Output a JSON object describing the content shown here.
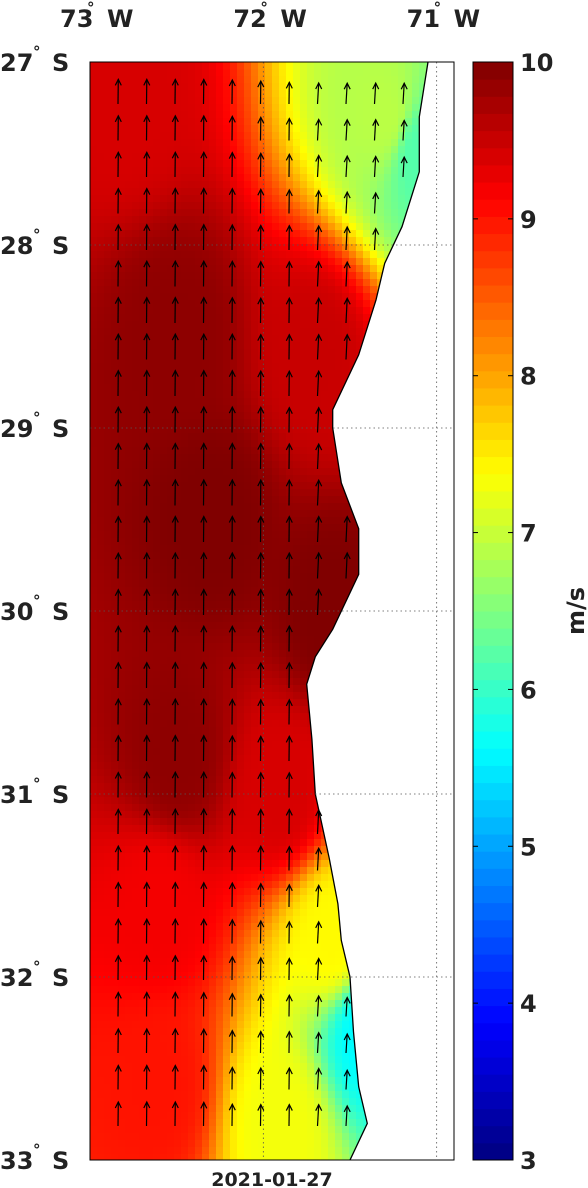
{
  "title": "",
  "date_label": "2021-01-27",
  "colorbar": {
    "unit": "m/s",
    "min": 3,
    "max": 10,
    "tick_labels": [
      "3",
      "4",
      "5",
      "6",
      "7",
      "8",
      "9",
      "10"
    ],
    "colormap": "jet"
  },
  "axes": {
    "lon_ticks": [
      {
        "deg": "73",
        "dir": "W",
        "value": -73
      },
      {
        "deg": "72",
        "dir": "W",
        "value": -72
      },
      {
        "deg": "71",
        "dir": "W",
        "value": -71
      }
    ],
    "lat_ticks": [
      {
        "deg": "27",
        "dir": "S",
        "value": -27
      },
      {
        "deg": "28",
        "dir": "S",
        "value": -28
      },
      {
        "deg": "29",
        "dir": "S",
        "value": -29
      },
      {
        "deg": "30",
        "dir": "S",
        "value": -30
      },
      {
        "deg": "31",
        "dir": "S",
        "value": -31
      },
      {
        "deg": "32",
        "dir": "S",
        "value": -32
      },
      {
        "deg": "33",
        "dir": "S",
        "value": -33
      }
    ],
    "lon_range": [
      -73.0,
      -70.9
    ],
    "lat_range": [
      -33.0,
      -27.0
    ],
    "grid": "dotted"
  },
  "colors": {
    "land": "#ffffff",
    "coastline": "#000000",
    "arrows": "#000000",
    "labels": "#222222"
  },
  "chart_data": {
    "type": "heatmap",
    "variable": "wind speed with direction vectors",
    "unit": "m/s",
    "wind_direction": "from south (northward arrows)",
    "speed_samples": [
      {
        "lat": -27.2,
        "lon": -72.8,
        "speed": 9.4
      },
      {
        "lat": -27.3,
        "lon": -71.3,
        "speed": 6.9
      },
      {
        "lat": -27.5,
        "lon": -71.1,
        "speed": 6.2
      },
      {
        "lat": -28.5,
        "lon": -72.5,
        "speed": 9.9
      },
      {
        "lat": -28.6,
        "lon": -71.7,
        "speed": 9.5
      },
      {
        "lat": -29.5,
        "lon": -72.3,
        "speed": 10.0
      },
      {
        "lat": -30.0,
        "lon": -71.6,
        "speed": 10.0
      },
      {
        "lat": -30.8,
        "lon": -72.5,
        "speed": 9.9
      },
      {
        "lat": -31.0,
        "lon": -71.9,
        "speed": 9.4
      },
      {
        "lat": -31.6,
        "lon": -72.6,
        "speed": 9.2
      },
      {
        "lat": -31.8,
        "lon": -71.6,
        "speed": 7.4
      },
      {
        "lat": -32.3,
        "lon": -71.4,
        "speed": 5.6
      },
      {
        "lat": -32.6,
        "lon": -72.6,
        "speed": 9.0
      },
      {
        "lat": -32.8,
        "lon": -71.9,
        "speed": 7.3
      }
    ],
    "coastline": [
      [
        -71.05,
        -27.0
      ],
      [
        -71.1,
        -27.3
      ],
      [
        -71.1,
        -27.6
      ],
      [
        -71.2,
        -27.9
      ],
      [
        -71.3,
        -28.1
      ],
      [
        -71.35,
        -28.3
      ],
      [
        -71.45,
        -28.6
      ],
      [
        -71.6,
        -28.9
      ],
      [
        -71.6,
        -29.0
      ],
      [
        -71.55,
        -29.3
      ],
      [
        -71.45,
        -29.55
      ],
      [
        -71.45,
        -29.8
      ],
      [
        -71.6,
        -30.1
      ],
      [
        -71.7,
        -30.25
      ],
      [
        -71.75,
        -30.4
      ],
      [
        -71.72,
        -30.7
      ],
      [
        -71.7,
        -31.0
      ],
      [
        -71.62,
        -31.35
      ],
      [
        -71.57,
        -31.6
      ],
      [
        -71.55,
        -31.8
      ],
      [
        -71.5,
        -32.0
      ],
      [
        -71.48,
        -32.3
      ],
      [
        -71.45,
        -32.6
      ],
      [
        -71.4,
        -32.8
      ],
      [
        -71.5,
        -33.0
      ]
    ]
  }
}
